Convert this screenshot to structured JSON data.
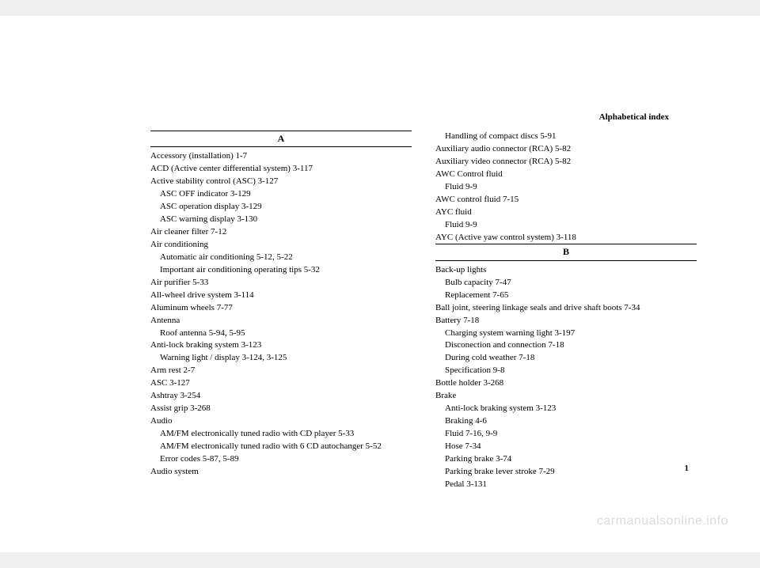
{
  "header": "Alphabetical index",
  "pageNumber": "1",
  "watermark": "carmanualsonline.info",
  "left": {
    "letter": "A",
    "lines": [
      {
        "text": "Accessory (installation)   1-7",
        "cls": "entry"
      },
      {
        "text": "ACD (Active center differential system)   3-117",
        "cls": "entry"
      },
      {
        "text": "Active stability control (ASC)   3-127",
        "cls": "entry"
      },
      {
        "text": "ASC OFF indicator   3-129",
        "cls": "sub"
      },
      {
        "text": "ASC operation display   3-129",
        "cls": "sub"
      },
      {
        "text": "ASC warning display   3-130",
        "cls": "sub"
      },
      {
        "text": "Air cleaner filter   7-12",
        "cls": "entry"
      },
      {
        "text": "Air conditioning",
        "cls": "entry"
      },
      {
        "text": "Automatic air conditioning   5-12, 5-22",
        "cls": "sub"
      },
      {
        "text": "Important air conditioning operating tips   5-32",
        "cls": "sub"
      },
      {
        "text": "Air purifier   5-33",
        "cls": "entry"
      },
      {
        "text": "All-wheel drive system   3-114",
        "cls": "entry"
      },
      {
        "text": "Aluminum wheels   7-77",
        "cls": "entry"
      },
      {
        "text": "Antenna",
        "cls": "entry"
      },
      {
        "text": "Roof antenna   5-94, 5-95",
        "cls": "sub"
      },
      {
        "text": "Anti-lock braking system   3-123",
        "cls": "entry"
      },
      {
        "text": "Warning light / display   3-124, 3-125",
        "cls": "sub"
      },
      {
        "text": "Arm rest   2-7",
        "cls": "entry"
      },
      {
        "text": "ASC   3-127",
        "cls": "entry"
      },
      {
        "text": "Ashtray   3-254",
        "cls": "entry"
      },
      {
        "text": "Assist grip   3-268",
        "cls": "entry"
      },
      {
        "text": "Audio",
        "cls": "entry"
      },
      {
        "text": "AM/FM electronically tuned radio with CD player   5-33",
        "cls": "sub"
      },
      {
        "text": "AM/FM electronically tuned radio with 6 CD autochanger   5-52",
        "cls": "sub"
      },
      {
        "text": "Error codes   5-87, 5-89",
        "cls": "sub"
      },
      {
        "text": "Audio system",
        "cls": "entry"
      }
    ]
  },
  "right": {
    "preLines": [
      {
        "text": "Handling of compact discs   5-91",
        "cls": "sub"
      },
      {
        "text": "Auxiliary audio connector (RCA)   5-82",
        "cls": "entry"
      },
      {
        "text": "Auxiliary video connector (RCA)   5-82",
        "cls": "entry"
      },
      {
        "text": "AWC Control fluid",
        "cls": "entry"
      },
      {
        "text": "Fluid   9-9",
        "cls": "sub"
      },
      {
        "text": "AWC control fluid   7-15",
        "cls": "entry"
      },
      {
        "text": "AYC fluid",
        "cls": "entry"
      },
      {
        "text": "Fluid   9-9",
        "cls": "sub"
      },
      {
        "text": "AYC (Active yaw control system)   3-118",
        "cls": "entry"
      }
    ],
    "letter": "B",
    "lines": [
      {
        "text": "Back-up lights",
        "cls": "entry"
      },
      {
        "text": "Bulb capacity   7-47",
        "cls": "sub"
      },
      {
        "text": "Replacement   7-65",
        "cls": "sub"
      },
      {
        "text": "Ball joint, steering linkage seals and drive shaft boots   7-34",
        "cls": "entry"
      },
      {
        "text": "Battery   7-18",
        "cls": "entry"
      },
      {
        "text": "Charging system warning light   3-197",
        "cls": "sub"
      },
      {
        "text": "Disconection and connection   7-18",
        "cls": "sub"
      },
      {
        "text": "During cold weather   7-18",
        "cls": "sub"
      },
      {
        "text": "Specification   9-8",
        "cls": "sub"
      },
      {
        "text": "Bottle holder   3-268",
        "cls": "entry"
      },
      {
        "text": "Brake",
        "cls": "entry"
      },
      {
        "text": "Anti-lock braking system   3-123",
        "cls": "sub"
      },
      {
        "text": "Braking   4-6",
        "cls": "sub"
      },
      {
        "text": "Fluid   7-16, 9-9",
        "cls": "sub"
      },
      {
        "text": "Hose   7-34",
        "cls": "sub"
      },
      {
        "text": "Parking brake   3-74",
        "cls": "sub"
      },
      {
        "text": "Parking brake lever stroke   7-29",
        "cls": "sub"
      },
      {
        "text": "Pedal   3-131",
        "cls": "sub"
      }
    ]
  }
}
